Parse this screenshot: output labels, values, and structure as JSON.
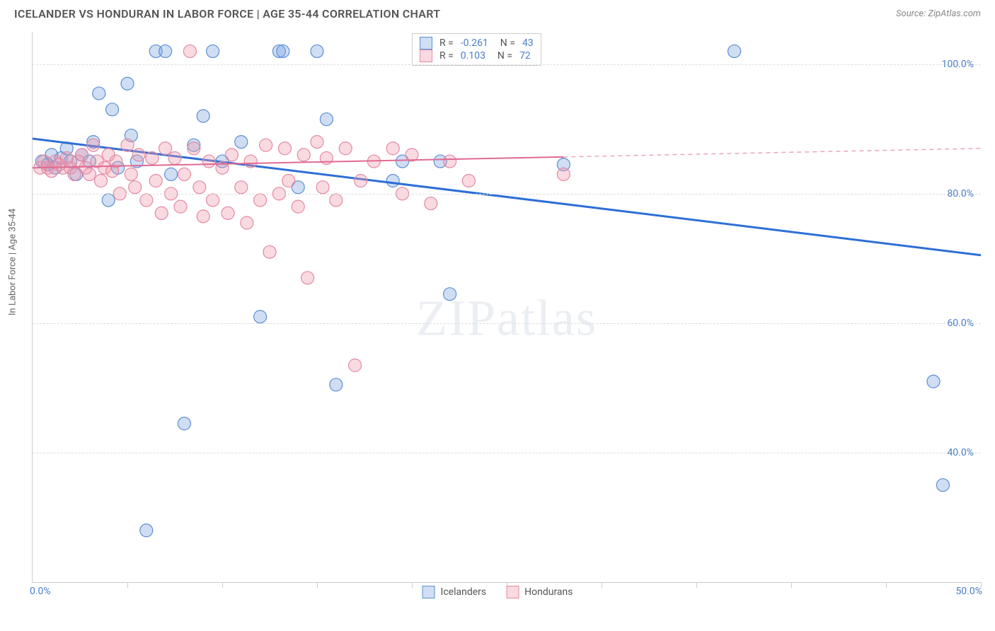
{
  "title": "ICELANDER VS HONDURAN IN LABOR FORCE | AGE 35-44 CORRELATION CHART",
  "source": "Source: ZipAtlas.com",
  "watermark": "ZIPatlas",
  "y_axis_label": "In Labor Force | Age 35-44",
  "xlim": [
    0,
    50
  ],
  "ylim": [
    20,
    105
  ],
  "x_min_label": "0.0%",
  "x_max_label": "50.0%",
  "y_gridlines": [
    40,
    60,
    80,
    100
  ],
  "y_labels": [
    "40.0%",
    "60.0%",
    "80.0%",
    "100.0%"
  ],
  "x_ticks": [
    5,
    10,
    15,
    20,
    25,
    30,
    35,
    40,
    45,
    50
  ],
  "series": [
    {
      "name": "Icelanders",
      "r": "-0.261",
      "n": "43",
      "fill": "rgba(120,160,220,0.35)",
      "stroke": "#5b8fd6",
      "trend": {
        "x1": 0,
        "y1": 88.5,
        "x2": 50,
        "y2": 70.5,
        "solid_until": 50
      },
      "points": [
        [
          0.5,
          85
        ],
        [
          0.8,
          84.5
        ],
        [
          1,
          86
        ],
        [
          1.2,
          84
        ],
        [
          1.5,
          85.5
        ],
        [
          1.8,
          87
        ],
        [
          2,
          85
        ],
        [
          2.3,
          83
        ],
        [
          2.6,
          86
        ],
        [
          3,
          85
        ],
        [
          3.2,
          88
        ],
        [
          3.5,
          95.5
        ],
        [
          4,
          79
        ],
        [
          4.2,
          93
        ],
        [
          4.5,
          84
        ],
        [
          5,
          97
        ],
        [
          5.2,
          89
        ],
        [
          5.5,
          85
        ],
        [
          6,
          28
        ],
        [
          6.5,
          102
        ],
        [
          7,
          102
        ],
        [
          7.3,
          83
        ],
        [
          8,
          44.5
        ],
        [
          8.5,
          87.5
        ],
        [
          9,
          92
        ],
        [
          9.5,
          102
        ],
        [
          10,
          85
        ],
        [
          11,
          88
        ],
        [
          12,
          61
        ],
        [
          13,
          102
        ],
        [
          13.2,
          102
        ],
        [
          14,
          81
        ],
        [
          15,
          102
        ],
        [
          15.5,
          91.5
        ],
        [
          16,
          50.5
        ],
        [
          19,
          82
        ],
        [
          19.5,
          85
        ],
        [
          21.5,
          85
        ],
        [
          22,
          64.5
        ],
        [
          28,
          84.5
        ],
        [
          37,
          102
        ],
        [
          47.5,
          51
        ],
        [
          48,
          35
        ]
      ]
    },
    {
      "name": "Hondurans",
      "r": "0.103",
      "n": "72",
      "fill": "rgba(240,150,170,0.35)",
      "stroke": "#e389a3",
      "trend": {
        "x1": 0,
        "y1": 84,
        "x2": 50,
        "y2": 87,
        "solid_until": 28
      },
      "points": [
        [
          0.4,
          84
        ],
        [
          0.6,
          85
        ],
        [
          0.8,
          84
        ],
        [
          1,
          83.5
        ],
        [
          1.2,
          85
        ],
        [
          1.4,
          84.5
        ],
        [
          1.6,
          84
        ],
        [
          1.8,
          85.5
        ],
        [
          2,
          84
        ],
        [
          2.2,
          83
        ],
        [
          2.4,
          85
        ],
        [
          2.6,
          86
        ],
        [
          2.8,
          84
        ],
        [
          3,
          83
        ],
        [
          3.2,
          87.5
        ],
        [
          3.4,
          85
        ],
        [
          3.6,
          82
        ],
        [
          3.8,
          84
        ],
        [
          4,
          86
        ],
        [
          4.2,
          83.5
        ],
        [
          4.4,
          85
        ],
        [
          4.6,
          80
        ],
        [
          5,
          87.5
        ],
        [
          5.2,
          83
        ],
        [
          5.4,
          81
        ],
        [
          5.6,
          86
        ],
        [
          6,
          79
        ],
        [
          6.3,
          85.5
        ],
        [
          6.5,
          82
        ],
        [
          6.8,
          77
        ],
        [
          7,
          87
        ],
        [
          7.3,
          80
        ],
        [
          7.5,
          85.5
        ],
        [
          7.8,
          78
        ],
        [
          8,
          83
        ],
        [
          8.3,
          102
        ],
        [
          8.5,
          87
        ],
        [
          8.8,
          81
        ],
        [
          9,
          76.5
        ],
        [
          9.3,
          85
        ],
        [
          9.5,
          79
        ],
        [
          10,
          84
        ],
        [
          10.3,
          77
        ],
        [
          10.5,
          86
        ],
        [
          11,
          81
        ],
        [
          11.3,
          75.5
        ],
        [
          11.5,
          85
        ],
        [
          12,
          79
        ],
        [
          12.3,
          87.5
        ],
        [
          12.5,
          71
        ],
        [
          13,
          80
        ],
        [
          13.3,
          87
        ],
        [
          13.5,
          82
        ],
        [
          14,
          78
        ],
        [
          14.3,
          86
        ],
        [
          14.5,
          67
        ],
        [
          15,
          88
        ],
        [
          15.3,
          81
        ],
        [
          15.5,
          85.5
        ],
        [
          16,
          79
        ],
        [
          16.5,
          87
        ],
        [
          17,
          53.5
        ],
        [
          17.3,
          82
        ],
        [
          18,
          85
        ],
        [
          19,
          87
        ],
        [
          19.5,
          80
        ],
        [
          20,
          86
        ],
        [
          20.5,
          102
        ],
        [
          21,
          78.5
        ],
        [
          22,
          85
        ],
        [
          23,
          82
        ],
        [
          28,
          83
        ]
      ]
    }
  ],
  "legend_bottom": [
    "Icelanders",
    "Hondurans"
  ],
  "marker_radius": 9,
  "trend_width": 3,
  "trend_width_secondary": 2
}
